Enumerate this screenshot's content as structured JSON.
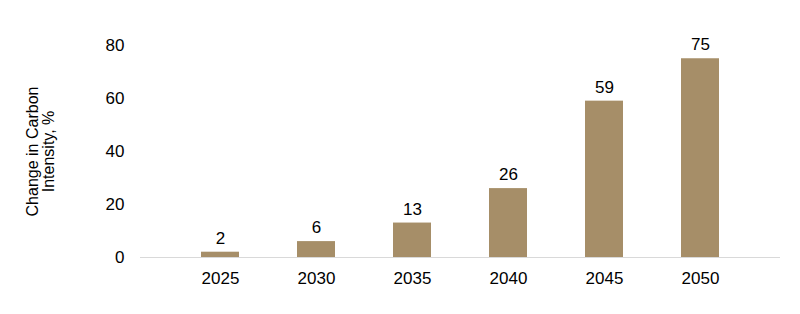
{
  "chart_data": {
    "type": "bar",
    "y_label": "Change in Carbon Intensity, %",
    "categories": [
      "2025",
      "2030",
      "2035",
      "2040",
      "2045",
      "2050"
    ],
    "values": [
      2,
      6,
      13,
      26,
      59,
      75
    ],
    "color": "#a68e68",
    "ylim": [
      0,
      80
    ],
    "yticks": [
      0,
      20,
      40,
      60,
      80
    ],
    "grid": false,
    "data_labels": true
  }
}
